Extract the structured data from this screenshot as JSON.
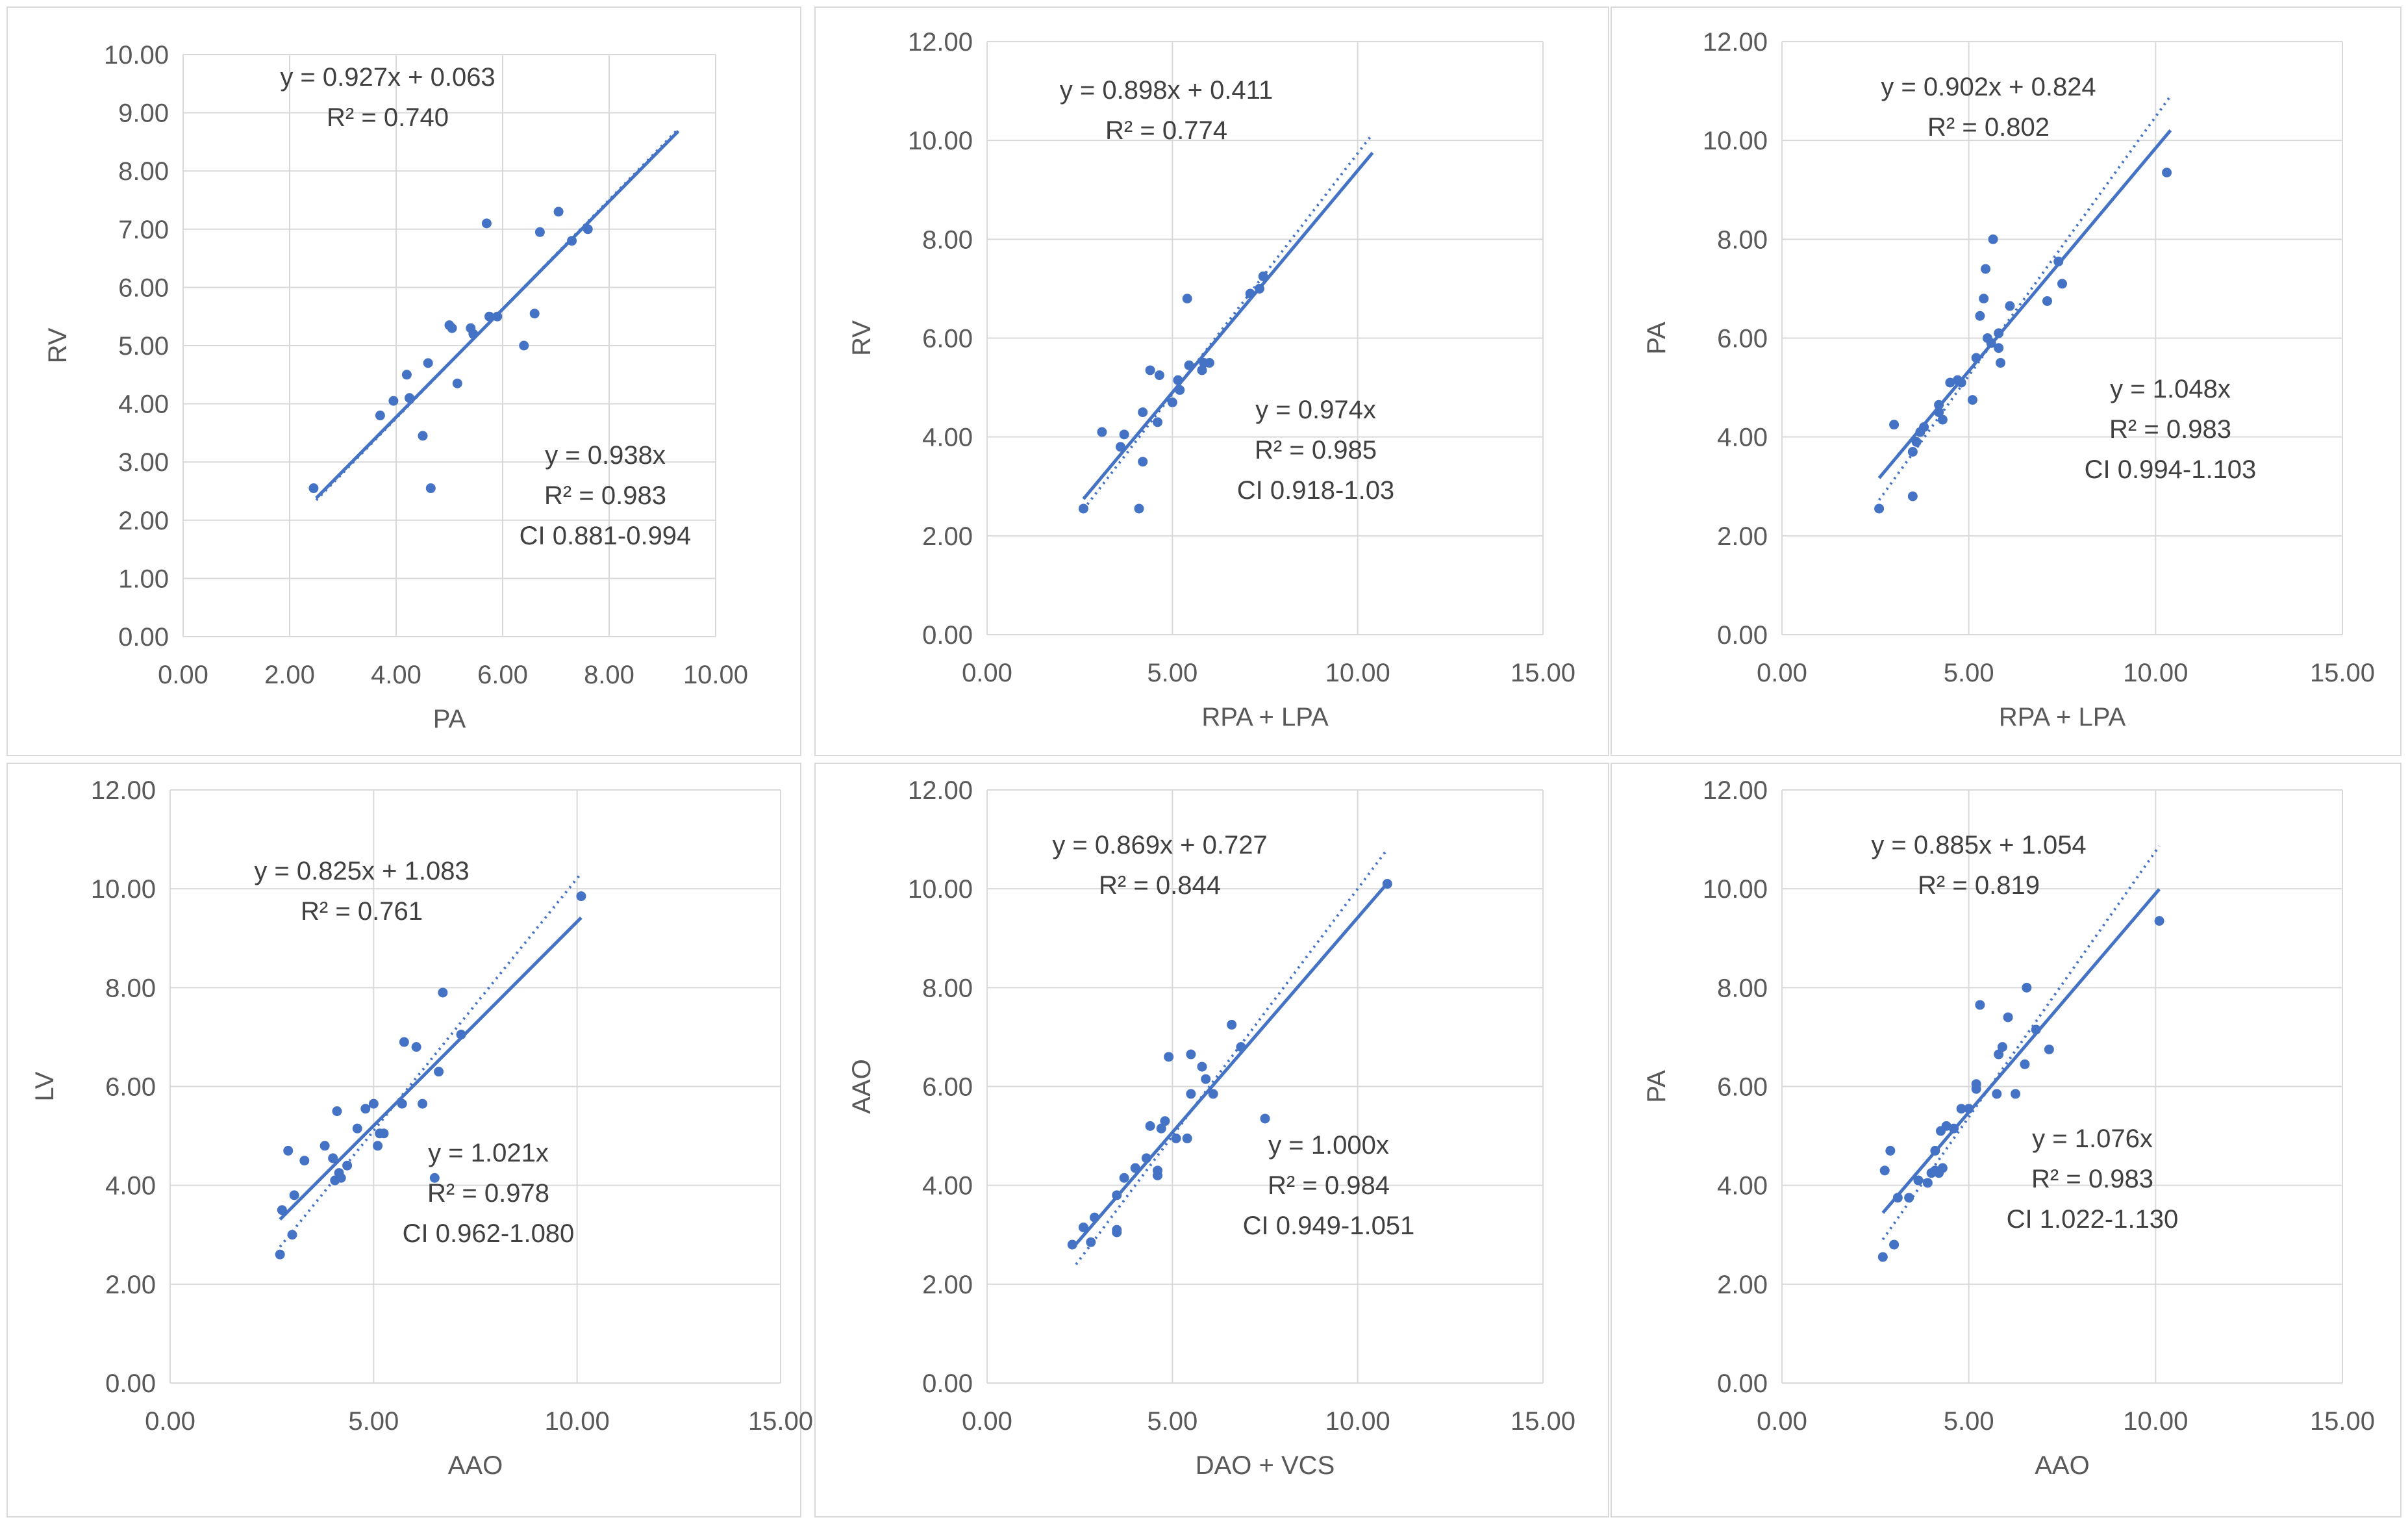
{
  "colors": {
    "series": "#4472c4",
    "grid": "#d9d9d9",
    "text": "#404040"
  },
  "chart_data": [
    {
      "type": "scatter",
      "xlabel": "PA",
      "ylabel": "RV",
      "xlim": [
        0,
        10
      ],
      "ylim": [
        0,
        10
      ],
      "xstep": 2,
      "ystep": 1,
      "x_ticks": [
        "0.00",
        "2.00",
        "4.00",
        "6.00",
        "8.00",
        "10.00"
      ],
      "y_ticks": [
        "0.00",
        "1.00",
        "2.00",
        "3.00",
        "4.00",
        "5.00",
        "6.00",
        "7.00",
        "8.00",
        "9.00",
        "10.00"
      ],
      "fit": {
        "slope": 0.927,
        "intercept": 0.063,
        "x_range": [
          2.5,
          9.3
        ]
      },
      "identity": {
        "slope": 0.938,
        "x_range": [
          2.5,
          9.3
        ]
      },
      "eq1": [
        "y = 0.927x + 0.063",
        "R² = 0.740"
      ],
      "eq2": [
        "y = 0.938x",
        "R² = 0.983",
        "CI 0.881-0.994"
      ],
      "points": [
        [
          2.45,
          2.55
        ],
        [
          3.7,
          3.8
        ],
        [
          3.95,
          4.05
        ],
        [
          4.2,
          4.5
        ],
        [
          4.25,
          4.1
        ],
        [
          4.5,
          3.45
        ],
        [
          4.6,
          4.7
        ],
        [
          4.65,
          2.55
        ],
        [
          5.0,
          5.35
        ],
        [
          5.05,
          5.3
        ],
        [
          5.15,
          4.35
        ],
        [
          5.4,
          5.3
        ],
        [
          5.45,
          5.2
        ],
        [
          5.7,
          7.1
        ],
        [
          5.75,
          5.5
        ],
        [
          5.9,
          5.5
        ],
        [
          6.4,
          5.0
        ],
        [
          6.6,
          5.55
        ],
        [
          6.7,
          6.95
        ],
        [
          7.05,
          7.3
        ],
        [
          7.3,
          6.8
        ],
        [
          7.6,
          7.0
        ]
      ]
    },
    {
      "type": "scatter",
      "xlabel": "RPA + LPA",
      "ylabel": "RV",
      "xlim": [
        0,
        15
      ],
      "ylim": [
        0,
        12
      ],
      "xstep": 5,
      "ystep": 2,
      "x_ticks": [
        "0.00",
        "5.00",
        "10.00",
        "15.00"
      ],
      "y_ticks": [
        "0.00",
        "2.00",
        "4.00",
        "6.00",
        "8.00",
        "10.00",
        "12.00"
      ],
      "fit": {
        "slope": 0.898,
        "intercept": 0.411,
        "x_range": [
          2.6,
          10.4
        ]
      },
      "identity": {
        "slope": 0.974,
        "x_range": [
          2.6,
          10.4
        ]
      },
      "eq1": [
        "y = 0.898x + 0.411",
        "R² = 0.774"
      ],
      "eq2": [
        "y = 0.974x",
        "R² = 0.985",
        "CI 0.918-1.03"
      ],
      "points": [
        [
          2.6,
          2.55
        ],
        [
          3.1,
          4.1
        ],
        [
          3.6,
          3.8
        ],
        [
          3.7,
          4.05
        ],
        [
          4.1,
          2.55
        ],
        [
          4.2,
          3.5
        ],
        [
          4.2,
          4.5
        ],
        [
          4.4,
          5.35
        ],
        [
          4.6,
          4.3
        ],
        [
          4.65,
          5.25
        ],
        [
          5.0,
          4.7
        ],
        [
          5.15,
          5.15
        ],
        [
          5.2,
          4.95
        ],
        [
          5.4,
          6.8
        ],
        [
          5.45,
          5.45
        ],
        [
          5.8,
          5.35
        ],
        [
          5.85,
          5.5
        ],
        [
          6.0,
          5.5
        ],
        [
          7.1,
          6.9
        ],
        [
          7.35,
          7.0
        ],
        [
          7.45,
          7.25
        ]
      ]
    },
    {
      "type": "scatter",
      "xlabel": "RPA + LPA",
      "ylabel": "PA",
      "xlim": [
        0,
        15
      ],
      "ylim": [
        0,
        12
      ],
      "xstep": 5,
      "ystep": 2,
      "x_ticks": [
        "0.00",
        "5.00",
        "10.00",
        "15.00"
      ],
      "y_ticks": [
        "0.00",
        "2.00",
        "4.00",
        "6.00",
        "8.00",
        "10.00",
        "12.00"
      ],
      "fit": {
        "slope": 0.902,
        "intercept": 0.824,
        "x_range": [
          2.6,
          10.4
        ]
      },
      "identity": {
        "slope": 1.048,
        "x_range": [
          2.6,
          10.4
        ]
      },
      "eq1": [
        "y = 0.902x + 0.824",
        "R² = 0.802"
      ],
      "eq2": [
        "y = 1.048x",
        "R² = 0.983",
        "CI 0.994-1.103"
      ],
      "points": [
        [
          2.6,
          2.55
        ],
        [
          3.0,
          4.25
        ],
        [
          3.5,
          2.8
        ],
        [
          3.5,
          3.7
        ],
        [
          3.6,
          3.9
        ],
        [
          3.7,
          4.1
        ],
        [
          3.8,
          4.2
        ],
        [
          4.2,
          4.5
        ],
        [
          4.2,
          4.65
        ],
        [
          4.3,
          4.35
        ],
        [
          4.5,
          5.1
        ],
        [
          4.7,
          5.15
        ],
        [
          4.8,
          5.1
        ],
        [
          5.1,
          4.75
        ],
        [
          5.2,
          5.6
        ],
        [
          5.3,
          6.45
        ],
        [
          5.4,
          6.8
        ],
        [
          5.45,
          7.4
        ],
        [
          5.5,
          6.0
        ],
        [
          5.6,
          5.9
        ],
        [
          5.65,
          8.0
        ],
        [
          5.8,
          5.8
        ],
        [
          5.8,
          6.1
        ],
        [
          5.85,
          5.5
        ],
        [
          6.1,
          6.65
        ],
        [
          7.1,
          6.75
        ],
        [
          7.4,
          7.55
        ],
        [
          7.5,
          7.1
        ],
        [
          10.3,
          9.35
        ]
      ]
    },
    {
      "type": "scatter",
      "xlabel": "AAO",
      "ylabel": "LV",
      "xlim": [
        0,
        15
      ],
      "ylim": [
        0,
        12
      ],
      "xstep": 5,
      "ystep": 2,
      "x_ticks": [
        "0.00",
        "5.00",
        "10.00",
        "15.00"
      ],
      "y_ticks": [
        "0.00",
        "2.00",
        "4.00",
        "6.00",
        "8.00",
        "10.00",
        "12.00"
      ],
      "fit": {
        "slope": 0.825,
        "intercept": 1.083,
        "x_range": [
          2.7,
          10.1
        ]
      },
      "identity": {
        "slope": 1.021,
        "x_range": [
          2.7,
          10.1
        ]
      },
      "eq1": [
        "y = 0.825x + 1.083",
        "R² = 0.761"
      ],
      "eq2": [
        "y = 1.021x",
        "R² = 0.978",
        "CI 0.962-1.080"
      ],
      "points": [
        [
          2.7,
          2.6
        ],
        [
          2.75,
          3.5
        ],
        [
          2.9,
          4.7
        ],
        [
          3.0,
          3.0
        ],
        [
          3.05,
          3.8
        ],
        [
          3.3,
          4.5
        ],
        [
          3.8,
          4.8
        ],
        [
          4.0,
          4.55
        ],
        [
          4.05,
          4.1
        ],
        [
          4.1,
          5.5
        ],
        [
          4.15,
          4.25
        ],
        [
          4.2,
          4.15
        ],
        [
          4.35,
          4.4
        ],
        [
          4.6,
          5.15
        ],
        [
          4.8,
          5.55
        ],
        [
          5.0,
          5.65
        ],
        [
          5.1,
          4.8
        ],
        [
          5.15,
          5.05
        ],
        [
          5.25,
          5.05
        ],
        [
          5.7,
          5.65
        ],
        [
          5.75,
          6.9
        ],
        [
          6.05,
          6.8
        ],
        [
          6.2,
          5.65
        ],
        [
          6.5,
          4.15
        ],
        [
          6.6,
          6.3
        ],
        [
          6.7,
          7.9
        ],
        [
          7.15,
          7.05
        ],
        [
          10.1,
          9.85
        ]
      ]
    },
    {
      "type": "scatter",
      "xlabel": "DAO + VCS",
      "ylabel": "AAO",
      "xlim": [
        0,
        15
      ],
      "ylim": [
        0,
        12
      ],
      "xstep": 5,
      "ystep": 2,
      "x_ticks": [
        "0.00",
        "5.00",
        "10.00",
        "15.00"
      ],
      "y_ticks": [
        "0.00",
        "2.00",
        "4.00",
        "6.00",
        "8.00",
        "10.00",
        "12.00"
      ],
      "fit": {
        "slope": 0.869,
        "intercept": 0.727,
        "x_range": [
          2.4,
          10.8
        ]
      },
      "identity": {
        "slope": 1.0,
        "x_range": [
          2.4,
          10.8
        ]
      },
      "eq1": [
        "y = 0.869x + 0.727",
        "R² = 0.844"
      ],
      "eq2": [
        "y = 1.000x",
        "R² = 0.984",
        "CI 0.949-1.051"
      ],
      "points": [
        [
          2.3,
          2.8
        ],
        [
          2.6,
          3.15
        ],
        [
          2.8,
          2.85
        ],
        [
          2.9,
          3.35
        ],
        [
          3.5,
          3.05
        ],
        [
          3.5,
          3.1
        ],
        [
          3.5,
          3.8
        ],
        [
          3.7,
          4.15
        ],
        [
          4.0,
          4.35
        ],
        [
          4.3,
          4.55
        ],
        [
          4.4,
          5.2
        ],
        [
          4.6,
          4.2
        ],
        [
          4.6,
          4.3
        ],
        [
          4.7,
          5.15
        ],
        [
          4.8,
          5.3
        ],
        [
          4.9,
          6.6
        ],
        [
          5.1,
          4.95
        ],
        [
          5.4,
          4.95
        ],
        [
          5.5,
          6.65
        ],
        [
          5.5,
          5.85
        ],
        [
          5.8,
          6.4
        ],
        [
          5.9,
          6.15
        ],
        [
          6.1,
          5.85
        ],
        [
          6.6,
          7.25
        ],
        [
          6.85,
          6.8
        ],
        [
          7.5,
          5.35
        ],
        [
          10.8,
          10.1
        ]
      ]
    },
    {
      "type": "scatter",
      "xlabel": "AAO",
      "ylabel": "PA",
      "xlim": [
        0,
        15
      ],
      "ylim": [
        0,
        12
      ],
      "xstep": 5,
      "ystep": 2,
      "x_ticks": [
        "0.00",
        "5.00",
        "10.00",
        "15.00"
      ],
      "y_ticks": [
        "0.00",
        "2.00",
        "4.00",
        "6.00",
        "8.00",
        "10.00",
        "12.00"
      ],
      "fit": {
        "slope": 0.885,
        "intercept": 1.054,
        "x_range": [
          2.7,
          10.1
        ]
      },
      "identity": {
        "slope": 1.076,
        "x_range": [
          2.7,
          10.1
        ]
      },
      "eq1": [
        "y = 0.885x + 1.054",
        "R² = 0.819"
      ],
      "eq2": [
        "y = 1.076x",
        "R² = 0.983",
        "CI 1.022-1.130"
      ],
      "points": [
        [
          2.7,
          2.55
        ],
        [
          2.75,
          4.3
        ],
        [
          2.9,
          4.7
        ],
        [
          3.0,
          2.8
        ],
        [
          3.1,
          3.75
        ],
        [
          3.4,
          3.75
        ],
        [
          3.65,
          4.1
        ],
        [
          3.9,
          4.05
        ],
        [
          4.0,
          4.25
        ],
        [
          4.1,
          4.7
        ],
        [
          4.1,
          4.3
        ],
        [
          4.2,
          4.25
        ],
        [
          4.25,
          5.1
        ],
        [
          4.3,
          4.35
        ],
        [
          4.4,
          5.2
        ],
        [
          4.6,
          5.15
        ],
        [
          4.8,
          5.55
        ],
        [
          5.0,
          5.55
        ],
        [
          5.2,
          6.05
        ],
        [
          5.2,
          5.95
        ],
        [
          5.3,
          7.65
        ],
        [
          5.75,
          5.85
        ],
        [
          5.8,
          6.65
        ],
        [
          5.9,
          6.8
        ],
        [
          6.05,
          7.4
        ],
        [
          6.25,
          5.85
        ],
        [
          6.5,
          6.45
        ],
        [
          6.55,
          8.0
        ],
        [
          6.8,
          7.15
        ],
        [
          7.15,
          6.75
        ],
        [
          10.1,
          9.35
        ]
      ]
    }
  ]
}
